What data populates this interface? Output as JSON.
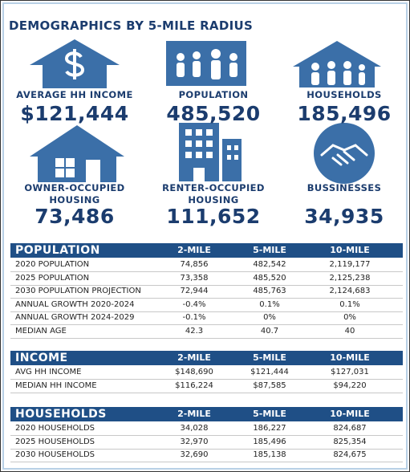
{
  "title": "DEMOGRAPHICS BY 5-MILE RADIUS",
  "stats": [
    {
      "label": "AVERAGE HH INCOME",
      "value": "$121,444"
    },
    {
      "label": "POPULATION",
      "value": "485,520"
    },
    {
      "label": "HOUSEHOLDS",
      "value": "185,496"
    },
    {
      "label": "OWNER-OCCUPIED HOUSING",
      "value": "73,486"
    },
    {
      "label": "RENTER-OCCUPIED HOUSING",
      "value": "111,652"
    },
    {
      "label": "BUSSINESSES",
      "value": "34,935"
    }
  ],
  "tables": [
    {
      "header": [
        "POPULATION",
        "2-MILE",
        "5-MILE",
        "10-MILE"
      ],
      "rows": [
        [
          "2020 POPULATION",
          "74,856",
          "482,542",
          "2,119,177"
        ],
        [
          "2025 POPULATION",
          "73,358",
          "485,520",
          "2,125,238"
        ],
        [
          "2030 POPULATION PROJECTION",
          "72,944",
          "485,763",
          "2,124,683"
        ],
        [
          "ANNUAL GROWTH 2020-2024",
          "-0.4%",
          "0.1%",
          "0.1%"
        ],
        [
          "ANNUAL GROWTH 2024-2029",
          "-0.1%",
          "0%",
          "0%"
        ],
        [
          "MEDIAN AGE",
          "42.3",
          "40.7",
          "40"
        ]
      ]
    },
    {
      "header": [
        "INCOME",
        "2-MILE",
        "5-MILE",
        "10-MILE"
      ],
      "rows": [
        [
          "AVG HH INCOME",
          "$148,690",
          "$121,444",
          "$127,031"
        ],
        [
          "MEDIAN HH INCOME",
          "$116,224",
          "$87,585",
          "$94,220"
        ]
      ]
    },
    {
      "header": [
        "HOUSEHOLDS",
        "2-MILE",
        "5-MILE",
        "10-MILE"
      ],
      "rows": [
        [
          "2020 HOUSEHOLDS",
          "34,028",
          "186,227",
          "824,687"
        ],
        [
          "2025 HOUSEHOLDS",
          "32,970",
          "185,496",
          "825,354"
        ],
        [
          "2030 HOUSEHOLDS",
          "32,690",
          "185,138",
          "824,675"
        ]
      ]
    }
  ]
}
